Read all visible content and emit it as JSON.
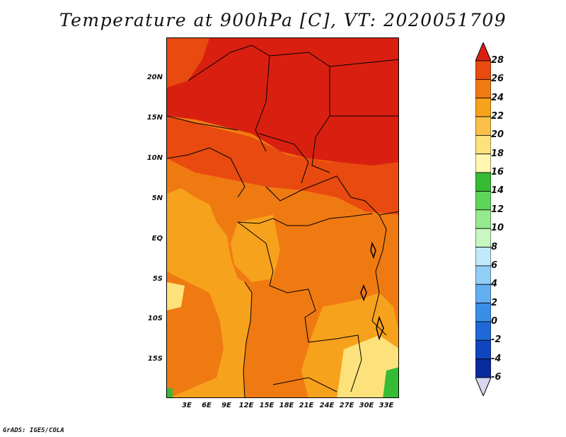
{
  "title": "Temperature at 900hPa [C], VT: 2020051709",
  "credit": "GrADS: IGES/COLA",
  "latitude_labels": [
    "20N",
    "15N",
    "10N",
    "5N",
    "EQ",
    "5S",
    "10S",
    "15S"
  ],
  "longitude_labels": [
    "3E",
    "6E",
    "9E",
    "12E",
    "15E",
    "18E",
    "21E",
    "24E",
    "27E",
    "30E",
    "33E"
  ],
  "colorbar": {
    "labels": [
      "28",
      "26",
      "24",
      "22",
      "20",
      "18",
      "16",
      "14",
      "12",
      "10",
      "8",
      "6",
      "4",
      "2",
      "0",
      "-2",
      "-4",
      "-6"
    ],
    "colors": [
      "#d92010",
      "#e84a0f",
      "#f07a12",
      "#f7a21c",
      "#fbc04a",
      "#fde27c",
      "#fff6b2",
      "#36bb34",
      "#5ed45a",
      "#96e98e",
      "#c8f7c1",
      "#c4e8fb",
      "#92cdf5",
      "#62aef0",
      "#3a8ee8",
      "#1e68d8",
      "#0f46c0",
      "#0a2aa0",
      "#071670"
    ],
    "top_arrow_color": "#d92010",
    "bottom_arrow_color": "#d8d8f0"
  },
  "regions": {
    "hot_north": "#d92010",
    "warm_band": "#e84a0f",
    "mid": "#f07a12",
    "cool_coast": "#f7a21c",
    "ocean": "#fbc04a",
    "pale": "#fde27c",
    "green_patch": "#36bb34"
  }
}
